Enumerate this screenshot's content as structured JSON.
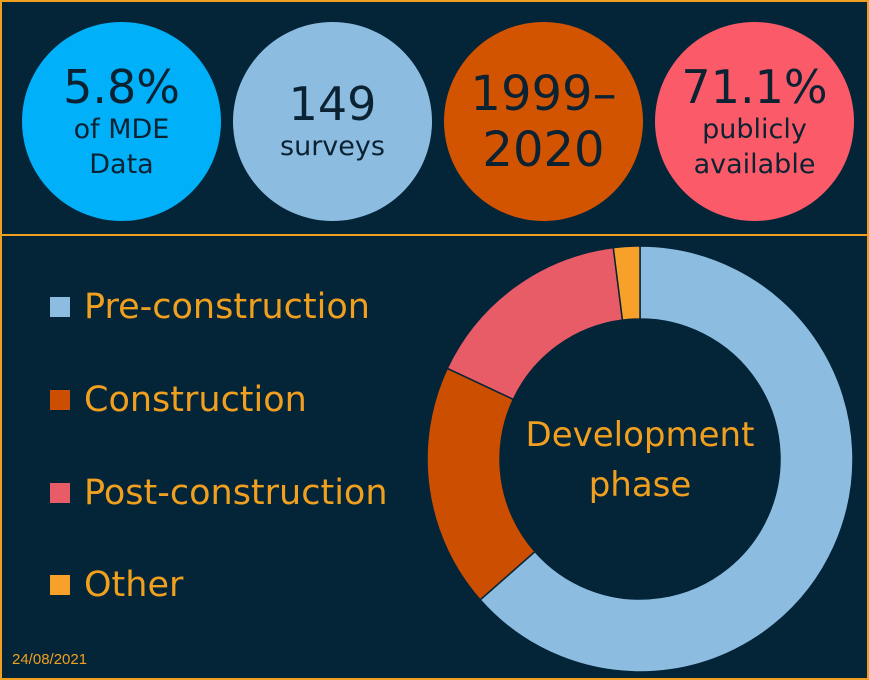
{
  "stats": [
    {
      "big": "5.8%",
      "small": "of MDE\nData",
      "color": "#00b0f8"
    },
    {
      "big": "149",
      "small": "surveys",
      "color": "#8cbde0"
    },
    {
      "big": "1999–\n2020",
      "small": "",
      "color": "#d35400"
    },
    {
      "big": "71.1%",
      "small": "publicly\navailable",
      "color": "#fb5b69"
    }
  ],
  "date": "24/08/2021",
  "chart_data": {
    "type": "pie",
    "title": "Development phase",
    "categories": [
      "Pre-construction",
      "Construction",
      "Post-construction",
      "Other"
    ],
    "values": [
      63.5,
      18.5,
      16,
      2
    ],
    "colors": [
      "#8cbde0",
      "#cc4e00",
      "#e85c68",
      "#f8a12a"
    ],
    "legend": "left"
  }
}
